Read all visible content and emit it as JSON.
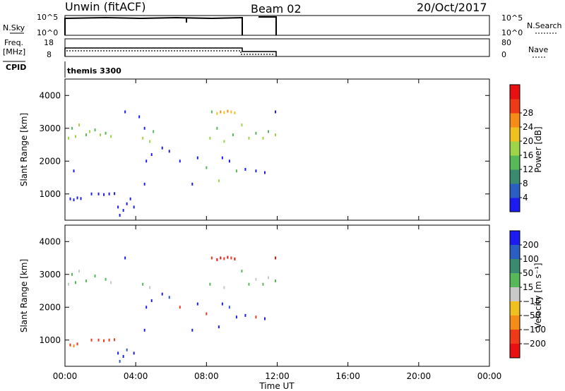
{
  "header": {
    "station": "Unwin (fitACF)",
    "beam": "Beam 02",
    "date": "20/Oct/2017"
  },
  "nsky_panel": {
    "left_label": "N.Sky",
    "left_ticks": [
      "10^5",
      "10^0"
    ],
    "right_ticks": [
      "10^5",
      "10^0"
    ],
    "right_label": "N.Search"
  },
  "freq_panel": {
    "left_label_1": "Freq.",
    "left_label_2": "[MHz]",
    "left_ticks": [
      "18",
      "8"
    ],
    "right_ticks": [
      "80",
      "0"
    ],
    "right_label": "Nave"
  },
  "cpid_panel": {
    "label": "CPID",
    "value": "themis 3300"
  },
  "chart_data": [
    {
      "type": "scatter",
      "name": "power",
      "ylabel": "Slant Range [km]",
      "ylim": [
        200,
        4500
      ],
      "xlim": [
        0,
        24
      ],
      "yticks": [
        "1000",
        "2000",
        "3000",
        "4000"
      ],
      "colorbar": {
        "label": "Power [dB]",
        "ticks": [
          "4",
          "8",
          "12",
          "16",
          "20",
          "24",
          "28"
        ],
        "colors": [
          "#1c1cf0",
          "#2a5ec2",
          "#3a8a70",
          "#57b85a",
          "#9ed448",
          "#f0c020",
          "#f58c18",
          "#ee3a18",
          "#e81010"
        ]
      },
      "points": [
        {
          "t": 0.3,
          "r": 850,
          "c": 0
        },
        {
          "t": 0.5,
          "r": 820,
          "c": 0
        },
        {
          "t": 0.7,
          "r": 880,
          "c": 0
        },
        {
          "t": 0.9,
          "r": 860,
          "c": 0
        },
        {
          "t": 1.5,
          "r": 1000,
          "c": 0
        },
        {
          "t": 1.9,
          "r": 1000,
          "c": 0
        },
        {
          "t": 2.2,
          "r": 980,
          "c": 0
        },
        {
          "t": 2.5,
          "r": 1000,
          "c": 0
        },
        {
          "t": 2.8,
          "r": 1010,
          "c": 0
        },
        {
          "t": 3.0,
          "r": 600,
          "c": 0
        },
        {
          "t": 3.1,
          "r": 350,
          "c": 0
        },
        {
          "t": 3.3,
          "r": 500,
          "c": 0
        },
        {
          "t": 3.5,
          "r": 700,
          "c": 0
        },
        {
          "t": 3.7,
          "r": 850,
          "c": 0
        },
        {
          "t": 3.9,
          "r": 600,
          "c": 0
        },
        {
          "t": 0.5,
          "r": 1700,
          "c": 0
        },
        {
          "t": 0.2,
          "r": 2700,
          "c": 4
        },
        {
          "t": 0.4,
          "r": 3000,
          "c": 3
        },
        {
          "t": 0.6,
          "r": 2750,
          "c": 4
        },
        {
          "t": 0.8,
          "r": 3100,
          "c": 4
        },
        {
          "t": 1.2,
          "r": 2800,
          "c": 3
        },
        {
          "t": 1.4,
          "r": 2900,
          "c": 4
        },
        {
          "t": 1.7,
          "r": 2950,
          "c": 3
        },
        {
          "t": 2.0,
          "r": 2800,
          "c": 4
        },
        {
          "t": 2.3,
          "r": 2850,
          "c": 3
        },
        {
          "t": 2.6,
          "r": 2750,
          "c": 4
        },
        {
          "t": 3.4,
          "r": 3500,
          "c": 0
        },
        {
          "t": 4.2,
          "r": 3350,
          "c": 0
        },
        {
          "t": 4.5,
          "r": 3000,
          "c": 0
        },
        {
          "t": 4.4,
          "r": 2700,
          "c": 4
        },
        {
          "t": 4.8,
          "r": 2600,
          "c": 4
        },
        {
          "t": 5.0,
          "r": 2900,
          "c": 3
        },
        {
          "t": 4.6,
          "r": 2000,
          "c": 0
        },
        {
          "t": 4.5,
          "r": 1300,
          "c": 0
        },
        {
          "t": 4.9,
          "r": 2200,
          "c": 0
        },
        {
          "t": 5.5,
          "r": 2400,
          "c": 0
        },
        {
          "t": 5.9,
          "r": 2300,
          "c": 0
        },
        {
          "t": 6.5,
          "r": 2000,
          "c": 0
        },
        {
          "t": 7.2,
          "r": 1300,
          "c": 0
        },
        {
          "t": 7.5,
          "r": 2100,
          "c": 0
        },
        {
          "t": 8.3,
          "r": 3500,
          "c": 3
        },
        {
          "t": 8.6,
          "r": 3450,
          "c": 5
        },
        {
          "t": 8.8,
          "r": 3500,
          "c": 6
        },
        {
          "t": 9.0,
          "r": 3480,
          "c": 5
        },
        {
          "t": 9.2,
          "r": 3520,
          "c": 6
        },
        {
          "t": 9.4,
          "r": 3500,
          "c": 5
        },
        {
          "t": 9.6,
          "r": 3470,
          "c": 5
        },
        {
          "t": 8.2,
          "r": 2700,
          "c": 4
        },
        {
          "t": 8.6,
          "r": 3000,
          "c": 3
        },
        {
          "t": 9.0,
          "r": 2600,
          "c": 4
        },
        {
          "t": 9.5,
          "r": 2800,
          "c": 3
        },
        {
          "t": 10.0,
          "r": 3100,
          "c": 4
        },
        {
          "t": 10.4,
          "r": 2700,
          "c": 4
        },
        {
          "t": 10.8,
          "r": 2850,
          "c": 3
        },
        {
          "t": 11.2,
          "r": 2700,
          "c": 4
        },
        {
          "t": 11.5,
          "r": 2900,
          "c": 3
        },
        {
          "t": 11.9,
          "r": 2800,
          "c": 4
        },
        {
          "t": 8.0,
          "r": 1800,
          "c": 3
        },
        {
          "t": 8.9,
          "r": 2100,
          "c": 0
        },
        {
          "t": 9.3,
          "r": 2000,
          "c": 0
        },
        {
          "t": 9.7,
          "r": 1700,
          "c": 3
        },
        {
          "t": 10.2,
          "r": 1750,
          "c": 0
        },
        {
          "t": 10.8,
          "r": 1700,
          "c": 0
        },
        {
          "t": 11.3,
          "r": 1650,
          "c": 0
        },
        {
          "t": 8.7,
          "r": 1400,
          "c": 4
        },
        {
          "t": 11.9,
          "r": 3500,
          "c": 0
        }
      ]
    },
    {
      "type": "scatter",
      "name": "velocity",
      "ylabel": "Slant Range [km]",
      "ylim": [
        200,
        4500
      ],
      "xlim": [
        0,
        24
      ],
      "yticks": [
        "1000",
        "2000",
        "3000",
        "4000"
      ],
      "xticks": [
        "00:00",
        "04:00",
        "08:00",
        "12:00",
        "16:00",
        "20:00",
        "00:00"
      ],
      "xlabel": "Time UT",
      "colorbar": {
        "label": "Velocity [m s⁻¹]",
        "ticks": [
          "200",
          "100",
          "50",
          "15",
          "−15",
          "−50",
          "−100",
          "−200"
        ],
        "colors": [
          "#1c1cf0",
          "#2a5ec2",
          "#3a8a70",
          "#57b85a",
          "#c8c8c8",
          "#f0c020",
          "#f58c18",
          "#ee3a18",
          "#e81010"
        ]
      },
      "points": [
        {
          "t": 0.3,
          "r": 850,
          "c": 7
        },
        {
          "t": 0.5,
          "r": 820,
          "c": 6
        },
        {
          "t": 0.7,
          "r": 880,
          "c": 7
        },
        {
          "t": 1.5,
          "r": 1000,
          "c": 7
        },
        {
          "t": 1.9,
          "r": 1000,
          "c": 7
        },
        {
          "t": 2.2,
          "r": 980,
          "c": 7
        },
        {
          "t": 2.5,
          "r": 1000,
          "c": 7
        },
        {
          "t": 2.8,
          "r": 1010,
          "c": 7
        },
        {
          "t": 3.0,
          "r": 600,
          "c": 0
        },
        {
          "t": 3.1,
          "r": 350,
          "c": 1
        },
        {
          "t": 3.3,
          "r": 500,
          "c": 0
        },
        {
          "t": 3.5,
          "r": 700,
          "c": 1
        },
        {
          "t": 3.9,
          "r": 600,
          "c": 0
        },
        {
          "t": 0.2,
          "r": 2700,
          "c": 4
        },
        {
          "t": 0.4,
          "r": 3000,
          "c": 3
        },
        {
          "t": 0.6,
          "r": 2750,
          "c": 3
        },
        {
          "t": 0.8,
          "r": 3100,
          "c": 4
        },
        {
          "t": 1.2,
          "r": 2800,
          "c": 3
        },
        {
          "t": 1.7,
          "r": 2950,
          "c": 3
        },
        {
          "t": 2.3,
          "r": 2850,
          "c": 3
        },
        {
          "t": 2.6,
          "r": 2750,
          "c": 4
        },
        {
          "t": 3.4,
          "r": 3500,
          "c": 0
        },
        {
          "t": 4.4,
          "r": 2700,
          "c": 3
        },
        {
          "t": 4.8,
          "r": 2600,
          "c": 4
        },
        {
          "t": 4.6,
          "r": 2000,
          "c": 0
        },
        {
          "t": 4.5,
          "r": 1300,
          "c": 0
        },
        {
          "t": 4.9,
          "r": 2200,
          "c": 0
        },
        {
          "t": 5.5,
          "r": 2400,
          "c": 0
        },
        {
          "t": 5.9,
          "r": 2300,
          "c": 1
        },
        {
          "t": 6.5,
          "r": 2000,
          "c": 7
        },
        {
          "t": 7.2,
          "r": 1300,
          "c": 0
        },
        {
          "t": 7.5,
          "r": 2100,
          "c": 0
        },
        {
          "t": 8.3,
          "r": 3500,
          "c": 7
        },
        {
          "t": 8.6,
          "r": 3450,
          "c": 8
        },
        {
          "t": 8.8,
          "r": 3500,
          "c": 8
        },
        {
          "t": 9.0,
          "r": 3480,
          "c": 7
        },
        {
          "t": 9.2,
          "r": 3520,
          "c": 8
        },
        {
          "t": 9.4,
          "r": 3500,
          "c": 7
        },
        {
          "t": 9.6,
          "r": 3470,
          "c": 8
        },
        {
          "t": 8.2,
          "r": 2700,
          "c": 3
        },
        {
          "t": 9.0,
          "r": 2600,
          "c": 4
        },
        {
          "t": 10.0,
          "r": 3100,
          "c": 3
        },
        {
          "t": 10.4,
          "r": 2700,
          "c": 3
        },
        {
          "t": 10.8,
          "r": 2850,
          "c": 4
        },
        {
          "t": 11.2,
          "r": 2700,
          "c": 3
        },
        {
          "t": 11.5,
          "r": 2900,
          "c": 4
        },
        {
          "t": 11.9,
          "r": 2800,
          "c": 3
        },
        {
          "t": 8.0,
          "r": 1800,
          "c": 7
        },
        {
          "t": 8.9,
          "r": 2100,
          "c": 0
        },
        {
          "t": 9.3,
          "r": 2000,
          "c": 1
        },
        {
          "t": 9.7,
          "r": 1700,
          "c": 0
        },
        {
          "t": 10.2,
          "r": 1750,
          "c": 0
        },
        {
          "t": 10.8,
          "r": 1700,
          "c": 7
        },
        {
          "t": 11.3,
          "r": 1650,
          "c": 0
        },
        {
          "t": 8.7,
          "r": 1400,
          "c": 0
        },
        {
          "t": 11.9,
          "r": 3500,
          "c": 8
        }
      ]
    }
  ]
}
